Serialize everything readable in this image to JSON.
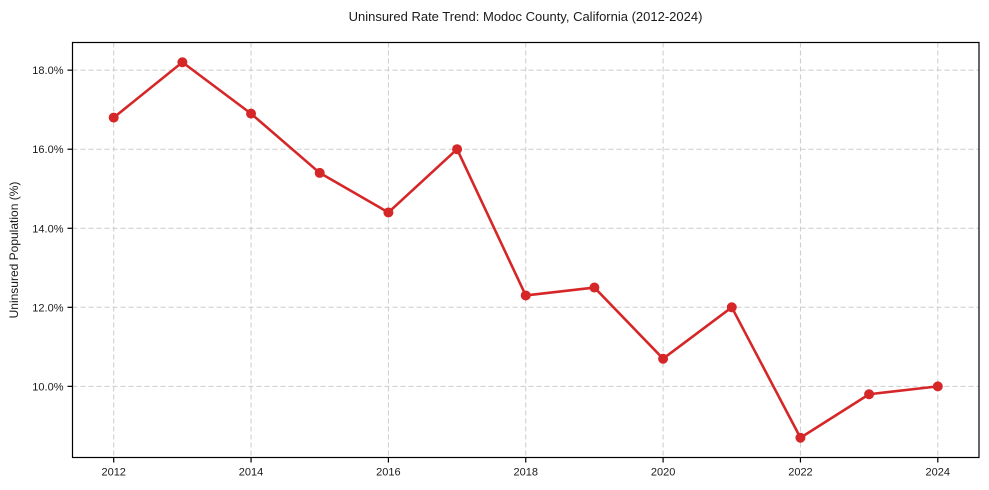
{
  "chart_data": {
    "type": "line",
    "title": "Uninsured Rate Trend: Modoc County, California (2012-2024)",
    "xlabel": "",
    "ylabel": "Uninsured Population (%)",
    "x": [
      2012,
      2013,
      2014,
      2015,
      2016,
      2017,
      2018,
      2019,
      2020,
      2021,
      2022,
      2023,
      2024
    ],
    "values": [
      16.8,
      18.2,
      16.9,
      15.4,
      14.4,
      16.0,
      12.3,
      12.5,
      10.7,
      12.0,
      8.7,
      9.8,
      10.0
    ],
    "xlim": [
      2011.4,
      2024.6
    ],
    "ylim": [
      8.2,
      18.7
    ],
    "xticks": [
      2012,
      2014,
      2016,
      2018,
      2020,
      2022,
      2024
    ],
    "yticks": [
      10.0,
      12.0,
      14.0,
      16.0,
      18.0
    ],
    "ytick_decimals": 1,
    "ytick_suffix": "%",
    "grid": {
      "show": true,
      "color": "#cccccc",
      "dash": "5 3"
    },
    "legend": {
      "show": false
    },
    "line_color": "#d62728",
    "marker_color": "#d62728",
    "marker": "circle",
    "axis_color": "#000000",
    "background": "#ffffff"
  }
}
